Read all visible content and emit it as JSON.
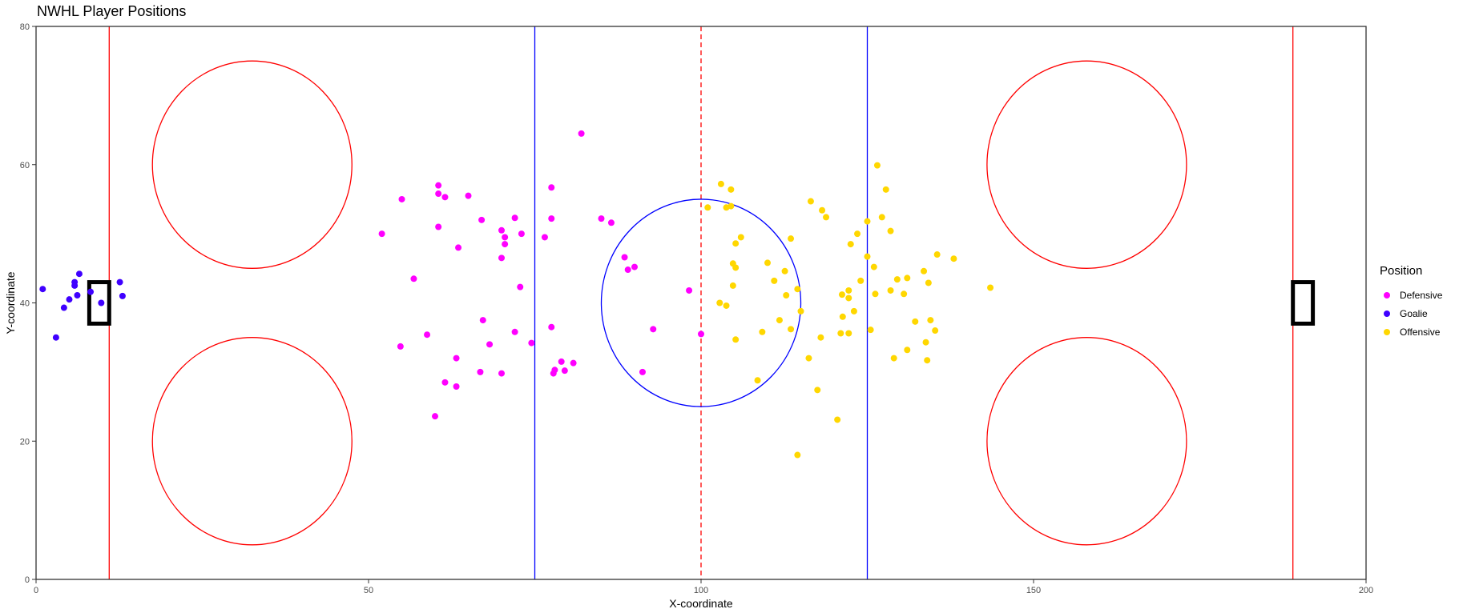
{
  "chart_data": {
    "type": "scatter",
    "title": "NWHL Player Positions",
    "xlabel": "X-coordinate",
    "ylabel": "Y-coordinate",
    "xlim": [
      0,
      200
    ],
    "ylim": [
      0,
      80
    ],
    "x_ticks": [
      0,
      50,
      100,
      150,
      200
    ],
    "y_ticks": [
      0,
      20,
      40,
      60,
      80
    ],
    "grid": false,
    "legend_title": "Position",
    "legend_placement": "right",
    "rink": {
      "goal_lines_x": [
        11,
        189
      ],
      "blue_lines_x": [
        75,
        125
      ],
      "center_line_x": 100,
      "center_circle": {
        "x": 100,
        "y": 40,
        "r": 15
      },
      "faceoff_circles": [
        {
          "x": 32.5,
          "y": 60,
          "r": 15
        },
        {
          "x": 32.5,
          "y": 20,
          "r": 15
        },
        {
          "x": 158,
          "y": 60,
          "r": 15
        },
        {
          "x": 158,
          "y": 20,
          "r": 15
        }
      ],
      "nets": [
        {
          "x0": 8,
          "x1": 11,
          "y0": 37,
          "y1": 43
        },
        {
          "x0": 189,
          "x1": 192,
          "y0": 37,
          "y1": 43
        }
      ],
      "colors": {
        "red": "#ff0000",
        "blue": "#0000ff",
        "net": "#000000"
      }
    },
    "series": [
      {
        "name": "Defensive",
        "color": "#ff00ff",
        "points": [
          [
            52,
            50
          ],
          [
            55,
            55
          ],
          [
            56.8,
            43.5
          ],
          [
            60.5,
            57
          ],
          [
            60.5,
            55.8
          ],
          [
            61.5,
            55.3
          ],
          [
            60.5,
            51
          ],
          [
            65,
            55.5
          ],
          [
            63.5,
            48
          ],
          [
            67,
            52
          ],
          [
            70,
            50.5
          ],
          [
            70.5,
            49.5
          ],
          [
            70.5,
            48.5
          ],
          [
            70,
            46.5
          ],
          [
            72,
            52.3
          ],
          [
            73,
            50
          ],
          [
            76.5,
            49.5
          ],
          [
            77.5,
            56.7
          ],
          [
            77.5,
            52.2
          ],
          [
            72.8,
            42.3
          ],
          [
            54.8,
            33.7
          ],
          [
            58.8,
            35.4
          ],
          [
            61.5,
            28.5
          ],
          [
            63.2,
            32
          ],
          [
            63.2,
            27.9
          ],
          [
            66.8,
            30
          ],
          [
            67.2,
            37.5
          ],
          [
            68.2,
            34
          ],
          [
            70,
            29.8
          ],
          [
            72,
            35.8
          ],
          [
            74.5,
            34.2
          ],
          [
            77.5,
            36.5
          ],
          [
            77.8,
            29.8
          ],
          [
            78,
            30.3
          ],
          [
            79,
            31.5
          ],
          [
            79.5,
            30.2
          ],
          [
            80.8,
            31.3
          ],
          [
            82,
            64.5
          ],
          [
            85,
            52.2
          ],
          [
            86.5,
            51.6
          ],
          [
            88.5,
            46.6
          ],
          [
            89,
            44.8
          ],
          [
            90,
            45.2
          ],
          [
            91.2,
            30
          ],
          [
            92.8,
            36.2
          ],
          [
            98.2,
            41.8
          ],
          [
            100,
            35.5
          ],
          [
            60,
            23.6
          ]
        ]
      },
      {
        "name": "Goalie",
        "color": "#3f00ff",
        "points": [
          [
            1,
            42
          ],
          [
            3,
            35
          ],
          [
            4.2,
            39.3
          ],
          [
            5,
            40.5
          ],
          [
            5.8,
            42.5
          ],
          [
            5.8,
            43
          ],
          [
            6.2,
            41.1
          ],
          [
            6.5,
            44.2
          ],
          [
            8.2,
            41.6
          ],
          [
            9.8,
            40
          ],
          [
            12.6,
            43
          ],
          [
            13,
            41
          ]
        ]
      },
      {
        "name": "Offensive",
        "color": "#ffd700",
        "points": [
          [
            101,
            53.8
          ],
          [
            103,
            57.2
          ],
          [
            103.8,
            53.8
          ],
          [
            104.5,
            54
          ],
          [
            104.5,
            56.4
          ],
          [
            105.2,
            48.6
          ],
          [
            106,
            49.5
          ],
          [
            104.8,
            45.7
          ],
          [
            105.2,
            45.1
          ],
          [
            104.8,
            42.5
          ],
          [
            102.8,
            40
          ],
          [
            103.8,
            39.6
          ],
          [
            105.2,
            34.7
          ],
          [
            108.5,
            28.8
          ],
          [
            109.2,
            35.8
          ],
          [
            110,
            45.8
          ],
          [
            111,
            43.2
          ],
          [
            111.8,
            37.5
          ],
          [
            112.6,
            44.6
          ],
          [
            112.8,
            41.1
          ],
          [
            113.5,
            49.3
          ],
          [
            113.5,
            36.2
          ],
          [
            114.5,
            42
          ],
          [
            115,
            38.8
          ],
          [
            114.5,
            18
          ],
          [
            116.2,
            32
          ],
          [
            116.5,
            54.7
          ],
          [
            117.5,
            27.4
          ],
          [
            118,
            35
          ],
          [
            118.2,
            53.4
          ],
          [
            118.8,
            52.4
          ],
          [
            120.5,
            23.1
          ],
          [
            121,
            35.6
          ],
          [
            121.2,
            41.2
          ],
          [
            121.3,
            38
          ],
          [
            122.2,
            41.8
          ],
          [
            122.2,
            40.7
          ],
          [
            122.2,
            35.6
          ],
          [
            122.5,
            48.5
          ],
          [
            123,
            38.8
          ],
          [
            123.5,
            50
          ],
          [
            124,
            43.2
          ],
          [
            125,
            46.7
          ],
          [
            125,
            51.8
          ],
          [
            125.5,
            36.1
          ],
          [
            126,
            45.2
          ],
          [
            126.2,
            41.3
          ],
          [
            126.5,
            59.9
          ],
          [
            127.2,
            52.4
          ],
          [
            127.8,
            56.4
          ],
          [
            128.5,
            50.4
          ],
          [
            128.5,
            41.8
          ],
          [
            129,
            32
          ],
          [
            129.5,
            43.4
          ],
          [
            130.5,
            41.3
          ],
          [
            131,
            43.6
          ],
          [
            131,
            33.2
          ],
          [
            132.2,
            37.3
          ],
          [
            133.5,
            44.6
          ],
          [
            133.8,
            34.3
          ],
          [
            134,
            31.7
          ],
          [
            134.2,
            42.9
          ],
          [
            134.5,
            37.5
          ],
          [
            135.2,
            36
          ],
          [
            135.5,
            47
          ],
          [
            138,
            46.4
          ],
          [
            143.5,
            42.2
          ]
        ]
      }
    ]
  }
}
